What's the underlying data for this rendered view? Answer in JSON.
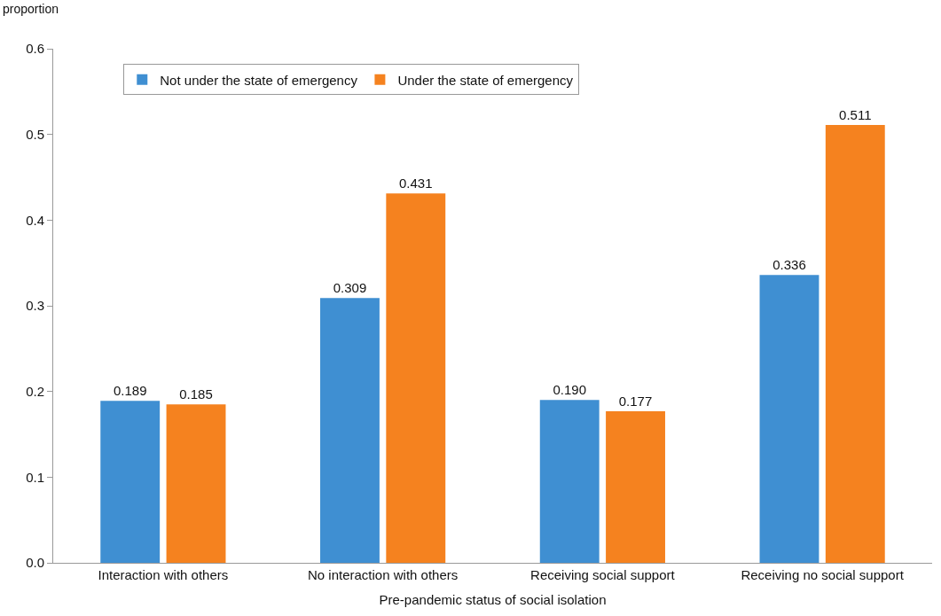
{
  "chart_data": {
    "type": "bar",
    "xlabel": "Pre-pandemic status of social isolation",
    "ylabel": "proportion",
    "categories": [
      "Interaction with others",
      "No interaction with others",
      "Receiving social support",
      "Receiving no social support"
    ],
    "series": [
      {
        "name": "Not under the state of emergency",
        "color": "#3f8fd2",
        "values": [
          0.189,
          0.309,
          0.19,
          0.336
        ],
        "value_labels": [
          "0.189",
          "0.309",
          "0.190",
          "0.336"
        ]
      },
      {
        "name": "Under the state of emergency",
        "color": "#f5821f",
        "values": [
          0.185,
          0.431,
          0.177,
          0.511
        ],
        "value_labels": [
          "0.185",
          "0.431",
          "0.177",
          "0.511"
        ]
      }
    ],
    "ylim": [
      0,
      0.6
    ],
    "yticks": [
      {
        "value": 0,
        "label": "0.0"
      },
      0.1,
      0.2,
      0.3,
      0.4,
      0.5,
      0.6
    ],
    "legend": "top left"
  }
}
